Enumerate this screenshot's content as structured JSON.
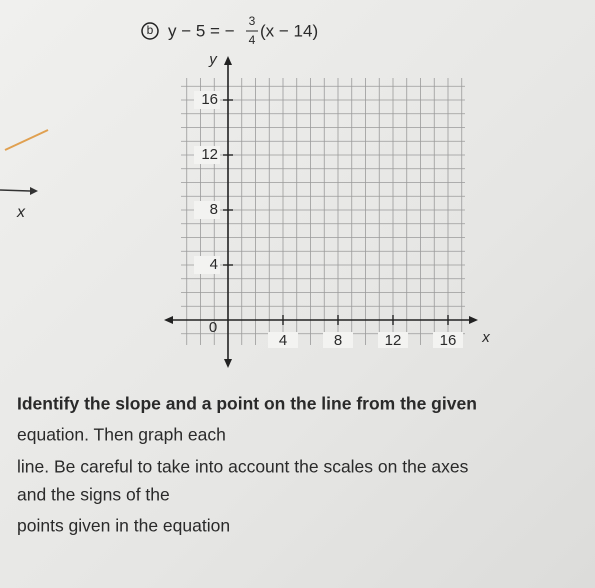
{
  "problem": {
    "label": "b",
    "equation_left": "y − 5 = −",
    "fraction_numerator": "3",
    "fraction_denominator": "4",
    "equation_right": "(x − 14)"
  },
  "graph": {
    "y_axis_label": "y",
    "x_axis_label": "x",
    "origin_label": "0",
    "x_ticks": [
      4,
      8,
      12,
      16
    ],
    "y_ticks": [
      4,
      8,
      12,
      16
    ]
  },
  "margin_label": "x",
  "instructions": [
    "Identify the slope and a point on the line from the given",
    "equation. Then graph each",
    "line. Be careful to take into account the scales on the axes",
    "and the signs of the",
    "points given in the equation"
  ]
}
